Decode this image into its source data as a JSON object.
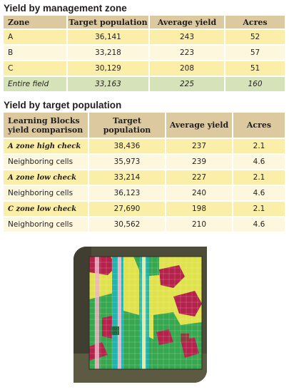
{
  "section1": {
    "title": "Yield by management zone",
    "headers": [
      "Zone",
      "Target population",
      "Average yield",
      "Acres"
    ],
    "rows": [
      [
        "A",
        "36,141",
        "243",
        "52"
      ],
      [
        "B",
        "33,218",
        "223",
        "57"
      ],
      [
        "C",
        "30,129",
        "208",
        "51"
      ],
      [
        "Entire field",
        "33,163",
        "225",
        "160"
      ]
    ]
  },
  "section2": {
    "title": "Yield by target population",
    "headers": [
      "Learning Blocks yield comparison",
      "Target population",
      "Average yield",
      "Acres"
    ],
    "rows": [
      [
        "A zone high check",
        "38,436",
        "237",
        "2.1"
      ],
      [
        "Neighboring cells",
        "35,973",
        "239",
        "4.6"
      ],
      [
        "A zone low check",
        "33,214",
        "227",
        "2.1"
      ],
      [
        "Neighboring cells",
        "36,123",
        "240",
        "4.6"
      ],
      [
        "C zone low check",
        "27,690",
        "198",
        "2.1"
      ],
      [
        "Neighboring cells",
        "30,562",
        "210",
        "4.6"
      ]
    ]
  },
  "colors": {
    "header": "#dcc9a0",
    "row_yellow": "#fbeea9",
    "row_cream": "#fdf7de",
    "row_green": "#d6e2b8",
    "map_red": "#b8224a",
    "map_yellow": "#e6e84a",
    "map_green": "#37a94f",
    "map_teal": "#1fb5b0",
    "map_pink": "#f2b6c8"
  }
}
